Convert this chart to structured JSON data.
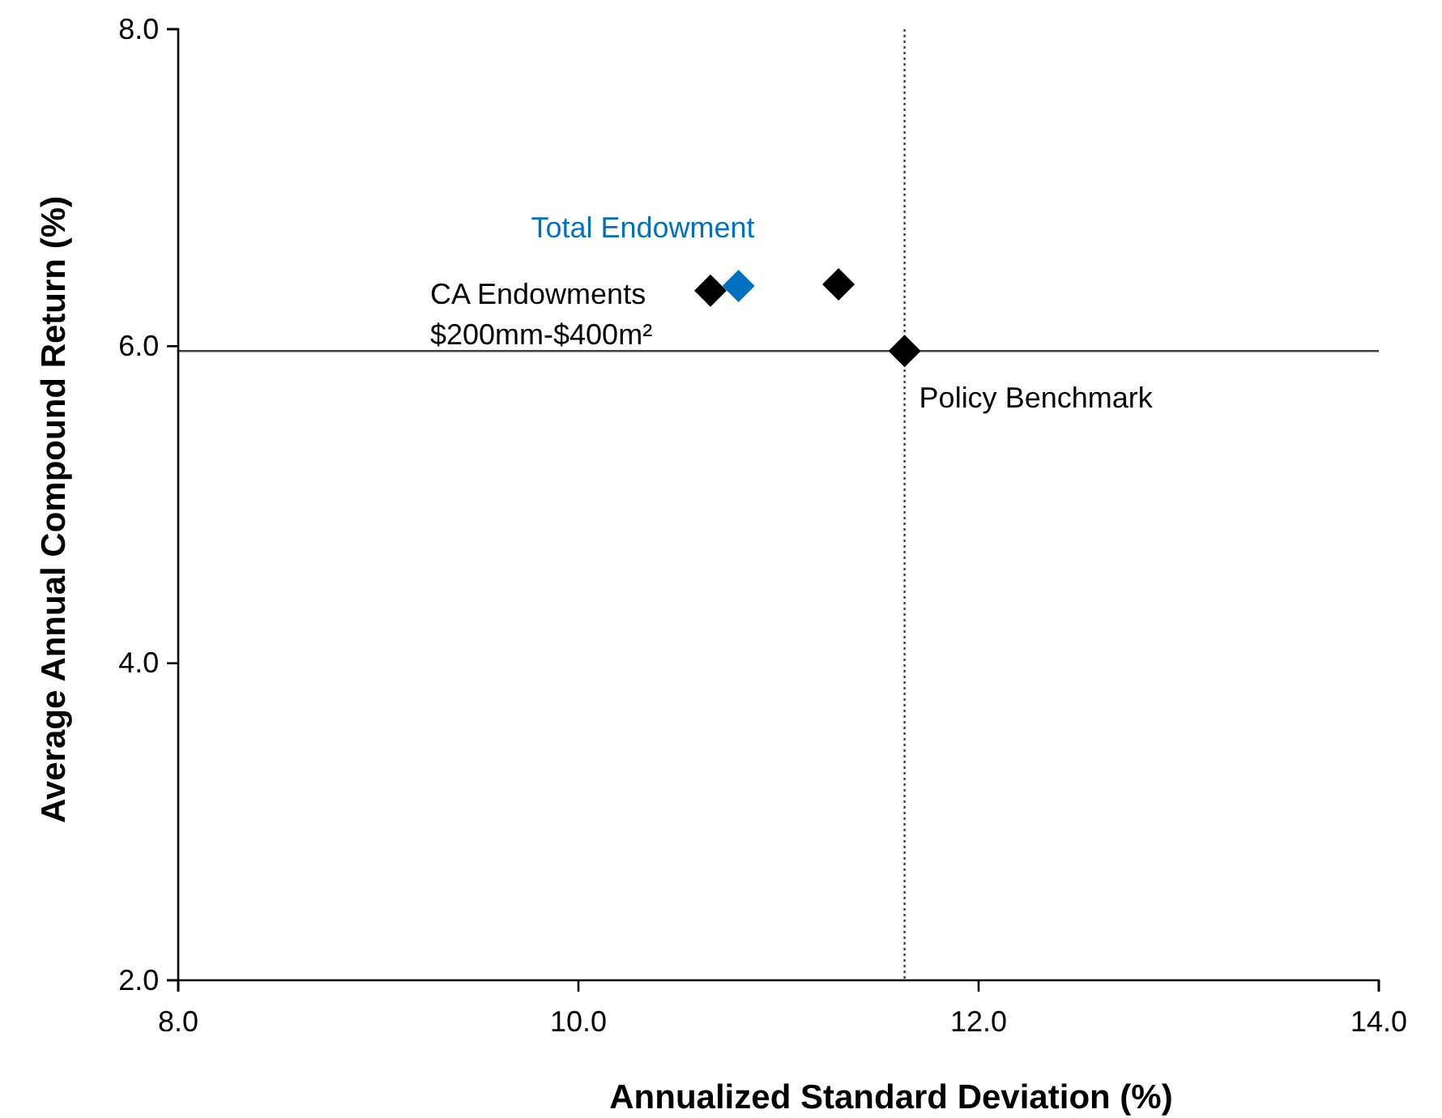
{
  "chart_data": {
    "type": "scatter",
    "xlabel": "Annualized Standard Deviation (%)",
    "ylabel": "Average Annual Compound Return (%)",
    "xlim": [
      8,
      14
    ],
    "xticks": [
      {
        "value": 8,
        "label": "8.0"
      },
      {
        "value": 10,
        "label": "10.0"
      },
      {
        "value": 12,
        "label": "12.0"
      },
      {
        "value": 14,
        "label": "14.0"
      }
    ],
    "ylim": [
      2,
      8
    ],
    "yticks": [
      {
        "value": 2,
        "label": "2.0"
      },
      {
        "value": 4,
        "label": "4.0"
      },
      {
        "value": 6,
        "label": "6.0"
      },
      {
        "value": 8,
        "label": "8.0"
      }
    ],
    "grid": false,
    "legend": false,
    "marker": "diamond",
    "ref_lines": [
      {
        "axis": "x",
        "value": 11.63,
        "color": "#404040",
        "line_style": "dotted"
      },
      {
        "axis": "y",
        "value": 5.97,
        "color": "#404040",
        "line_style": "solid"
      }
    ],
    "series": [
      {
        "name": "CA Endowments\n$200mm-$400m²",
        "color": "#000000",
        "x": [
          10.66
        ],
        "values": [
          6.35
        ]
      },
      {
        "name": "Total Endowment",
        "color": "#0070c0",
        "x": [
          10.8
        ],
        "values": [
          6.38
        ]
      },
      {
        "color": "#000000",
        "x": [
          11.3
        ],
        "values": [
          6.39
        ]
      },
      {
        "name": "Policy Benchmark",
        "color": "#000000",
        "x": [
          11.63
        ],
        "values": [
          5.97
        ]
      }
    ]
  }
}
